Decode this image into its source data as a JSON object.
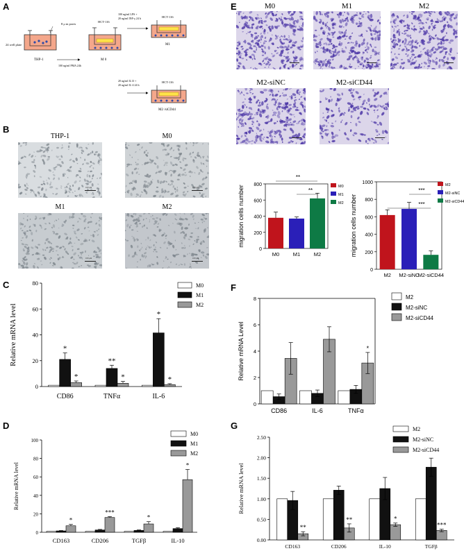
{
  "panel_labels": {
    "a": "A",
    "b": "B",
    "c": "C",
    "d": "D",
    "e": "E",
    "f": "F",
    "g": "G"
  },
  "schematic": {
    "plate_label": "24 well plate",
    "pore_label": "8 μ m pores",
    "thp1_label": "THP-1",
    "hct_label": "HCT-116",
    "m0_label": "M 0",
    "pma_label": "100 ng/ml PMA 24h",
    "m1_treat_a": "100 ng/ml LPS +",
    "m1_treat_b": "20 ng/ml INF-γ 24 h",
    "m1_label": "M1",
    "m2_treat_a": "20 ng/ml IL13 +",
    "m2_treat_b": "20 ng/ml IL-4 24 h",
    "m2_label": "M2 /siCD44"
  },
  "micro_b": [
    {
      "title": "THP-1",
      "scale": "100 μm"
    },
    {
      "title": "M0",
      "scale": "100 μm"
    },
    {
      "title": "M1",
      "scale": "100 μm"
    },
    {
      "title": "M2",
      "scale": "100 μm"
    }
  ],
  "micro_e": [
    {
      "title": "M0"
    },
    {
      "title": "M1"
    },
    {
      "title": "M2"
    },
    {
      "title": "M2-siNC"
    },
    {
      "title": "M2-siCD44"
    }
  ],
  "colors": {
    "white_bar": "#ffffff",
    "black_bar": "#111111",
    "gray_bar": "#999999",
    "red_bar": "#c0141c",
    "blue_bar": "#2a1fb8",
    "green_bar": "#0e7a45"
  },
  "chart_data": [
    {
      "id": "C",
      "type": "bar",
      "ylabel": "Relative mRNA level",
      "ylim": [
        0,
        80
      ],
      "yticks": [
        0,
        20,
        40,
        60,
        80
      ],
      "categories": [
        "CD86",
        "TNFα",
        "IL-6"
      ],
      "series": [
        {
          "name": "M0",
          "values": [
            1,
            1,
            1
          ],
          "err": [
            0,
            0,
            0
          ]
        },
        {
          "name": "M1",
          "values": [
            21,
            14,
            41.5
          ],
          "err": [
            5,
            2.5,
            11
          ]
        },
        {
          "name": "M2",
          "values": [
            3,
            2.5,
            1.5
          ],
          "err": [
            1.3,
            1.5,
            0.7
          ]
        }
      ],
      "annotations": [
        [
          "",
          "*",
          "*"
        ],
        [
          "",
          "**",
          "*"
        ],
        [
          "",
          "*",
          "*"
        ]
      ],
      "legend": "top-right"
    },
    {
      "id": "D",
      "type": "bar",
      "ylabel": "Relative mRNA level",
      "ylim": [
        0,
        100
      ],
      "yticks": [
        0,
        20,
        40,
        60,
        80,
        100
      ],
      "categories": [
        "CD163",
        "CD206",
        "TGFβ",
        "IL-10"
      ],
      "series": [
        {
          "name": "M0",
          "values": [
            1,
            1,
            1,
            1
          ],
          "err": [
            0,
            0,
            0,
            0
          ]
        },
        {
          "name": "M1",
          "values": [
            1.5,
            2.5,
            2,
            4
          ],
          "err": [
            0.4,
            0.6,
            0.5,
            1
          ]
        },
        {
          "name": "M2",
          "values": [
            7,
            16,
            9,
            57
          ],
          "err": [
            1.5,
            1,
            2.5,
            11
          ]
        }
      ],
      "annotations": [
        [
          "",
          "",
          "*"
        ],
        [
          "",
          "",
          "***"
        ],
        [
          "",
          "",
          "*"
        ],
        [
          "",
          "",
          "*"
        ]
      ],
      "legend": "top-right"
    },
    {
      "id": "E1",
      "type": "bar",
      "ylabel": "migration cells number",
      "ylim": [
        0,
        800
      ],
      "yticks": [
        0,
        200,
        400,
        600,
        800
      ],
      "categories": [
        "M0",
        "M1",
        "M2"
      ],
      "values": [
        380,
        370,
        620
      ],
      "err": [
        70,
        20,
        65
      ],
      "legend_entries": [
        "M0",
        "M1",
        "M2"
      ],
      "brackets": [
        {
          "from": 0,
          "to": 2,
          "label": "**"
        },
        {
          "from": 1,
          "to": 2,
          "label": "**"
        }
      ],
      "legend": "top-right"
    },
    {
      "id": "E2",
      "type": "bar",
      "ylabel": "migration cells number",
      "ylim": [
        0,
        1000
      ],
      "yticks": [
        0,
        200,
        400,
        600,
        800,
        1000
      ],
      "categories": [
        "M2",
        "M2-siNC",
        "M2-siCD44"
      ],
      "values": [
        620,
        690,
        165
      ],
      "err": [
        60,
        75,
        45
      ],
      "legend_entries": [
        "M2",
        "M2-siNC",
        "M2-siCD44"
      ],
      "brackets": [
        {
          "from": 1,
          "to": 2,
          "label": "***"
        },
        {
          "from": 0,
          "to": 2,
          "label": "***"
        }
      ],
      "legend": "top-right"
    },
    {
      "id": "F",
      "type": "bar",
      "ylabel": "Relative mRNA Level",
      "ylim": [
        0,
        8
      ],
      "yticks": [
        0,
        2,
        4,
        6,
        8
      ],
      "categories": [
        "CD86",
        "IL-6",
        "TNFα"
      ],
      "series": [
        {
          "name": "M2",
          "values": [
            1,
            1,
            1
          ],
          "err": [
            0,
            0,
            0
          ]
        },
        {
          "name": "M2-siNC",
          "values": [
            0.55,
            0.8,
            1.1
          ],
          "err": [
            0.2,
            0.25,
            0.3
          ]
        },
        {
          "name": "M2-siCD44",
          "values": [
            3.45,
            4.9,
            3.1
          ],
          "err": [
            1.2,
            0.95,
            0.8
          ]
        }
      ],
      "annotations": [
        [
          "",
          "",
          ""
        ],
        [
          "",
          "",
          ""
        ],
        [
          "",
          "",
          "*"
        ]
      ],
      "legend": "top-right"
    },
    {
      "id": "G",
      "type": "bar",
      "ylabel": "Relative mRNA level",
      "ylim": [
        0,
        2.5
      ],
      "yticks": [
        "0.00",
        "0.50",
        "1.00",
        "1.50",
        "2.00",
        "2.50"
      ],
      "categories": [
        "CD163",
        "CD206",
        "IL-10",
        "TGFβ"
      ],
      "series": [
        {
          "name": "M2",
          "values": [
            1,
            1,
            1,
            1
          ],
          "err": [
            0,
            0,
            0,
            0
          ]
        },
        {
          "name": "M2-siNC",
          "values": [
            0.96,
            1.21,
            1.25,
            1.77
          ],
          "err": [
            0.22,
            0.1,
            0.27,
            0.22
          ]
        },
        {
          "name": "M2-siCD44",
          "values": [
            0.15,
            0.29,
            0.37,
            0.23
          ],
          "err": [
            0.05,
            0.1,
            0.04,
            0.03
          ]
        }
      ],
      "annotations": [
        [
          "",
          "",
          "**"
        ],
        [
          "",
          "",
          "**"
        ],
        [
          "",
          "",
          "*"
        ],
        [
          "",
          "",
          "***"
        ]
      ],
      "legend": "top-right"
    }
  ]
}
